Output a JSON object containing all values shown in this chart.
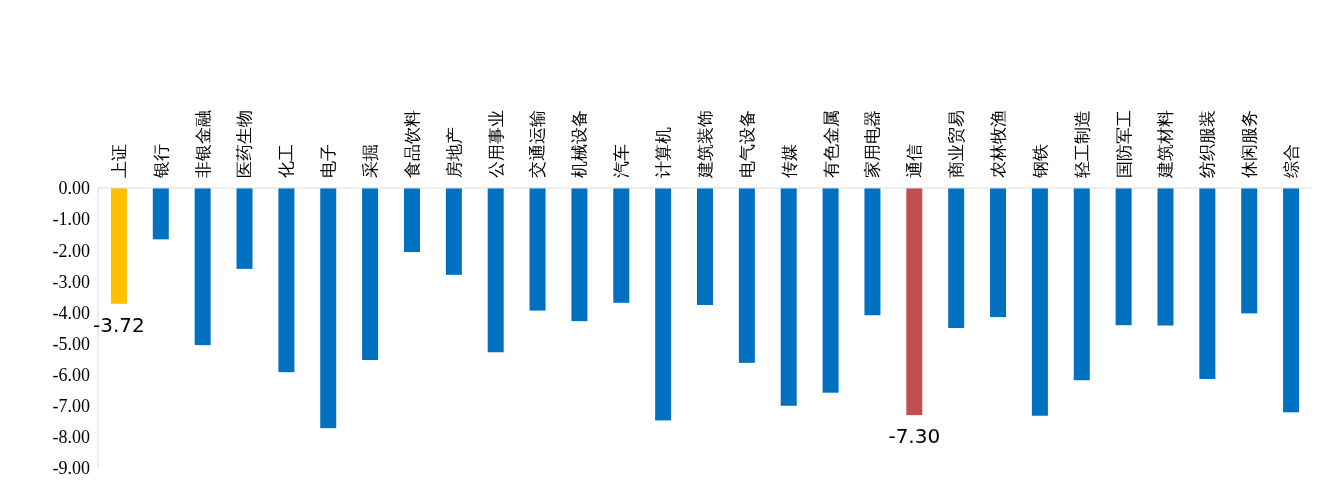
{
  "chart_data": {
    "type": "bar",
    "categories": [
      "上证",
      "银行",
      "非银金融",
      "医药生物",
      "化工",
      "电子",
      "采掘",
      "食品饮料",
      "房地产",
      "公用事业",
      "交通运输",
      "机械设备",
      "汽车",
      "计算机",
      "建筑装饰",
      "电气设备",
      "传媒",
      "有色金属",
      "家用电器",
      "通信",
      "商业贸易",
      "农林牧渔",
      "钢铁",
      "轻工制造",
      "国防军工",
      "建筑材料",
      "纺织服装",
      "休闲服务",
      "综合"
    ],
    "values": [
      -3.72,
      -1.65,
      -5.05,
      -2.6,
      -5.92,
      -7.72,
      -5.53,
      -2.06,
      -2.79,
      -5.28,
      -3.94,
      -4.28,
      -3.69,
      -7.47,
      -3.76,
      -5.62,
      -7.0,
      -6.58,
      -4.09,
      -7.3,
      -4.5,
      -4.15,
      -7.32,
      -6.18,
      -4.41,
      -4.42,
      -6.14,
      -4.03,
      -7.21
    ],
    "colors": [
      "#ffc000",
      "#0070c0",
      "#0070c0",
      "#0070c0",
      "#0070c0",
      "#0070c0",
      "#0070c0",
      "#0070c0",
      "#0070c0",
      "#0070c0",
      "#0070c0",
      "#0070c0",
      "#0070c0",
      "#0070c0",
      "#0070c0",
      "#0070c0",
      "#0070c0",
      "#0070c0",
      "#0070c0",
      "#c0504d",
      "#0070c0",
      "#0070c0",
      "#0070c0",
      "#0070c0",
      "#0070c0",
      "#0070c0",
      "#0070c0",
      "#0070c0",
      "#0070c0"
    ],
    "value_labels": [
      "-3.72",
      null,
      null,
      null,
      null,
      null,
      null,
      null,
      null,
      null,
      null,
      null,
      null,
      null,
      null,
      null,
      null,
      null,
      null,
      "-7.30",
      null,
      null,
      null,
      null,
      null,
      null,
      null,
      null,
      null
    ],
    "ylim": [
      -9,
      0
    ],
    "yticks": [
      {
        "value": 0,
        "label": "0.00"
      },
      {
        "value": -1,
        "label": "-1.00"
      },
      {
        "value": -2,
        "label": "-2.00"
      },
      {
        "value": -3,
        "label": "-3.00"
      },
      {
        "value": -4,
        "label": "-4.00"
      },
      {
        "value": -5,
        "label": "-5.00"
      },
      {
        "value": -6,
        "label": "-6.00"
      },
      {
        "value": -7,
        "label": "-7.00"
      },
      {
        "value": -8,
        "label": "-8.00"
      },
      {
        "value": -9,
        "label": "-9.00"
      }
    ]
  }
}
